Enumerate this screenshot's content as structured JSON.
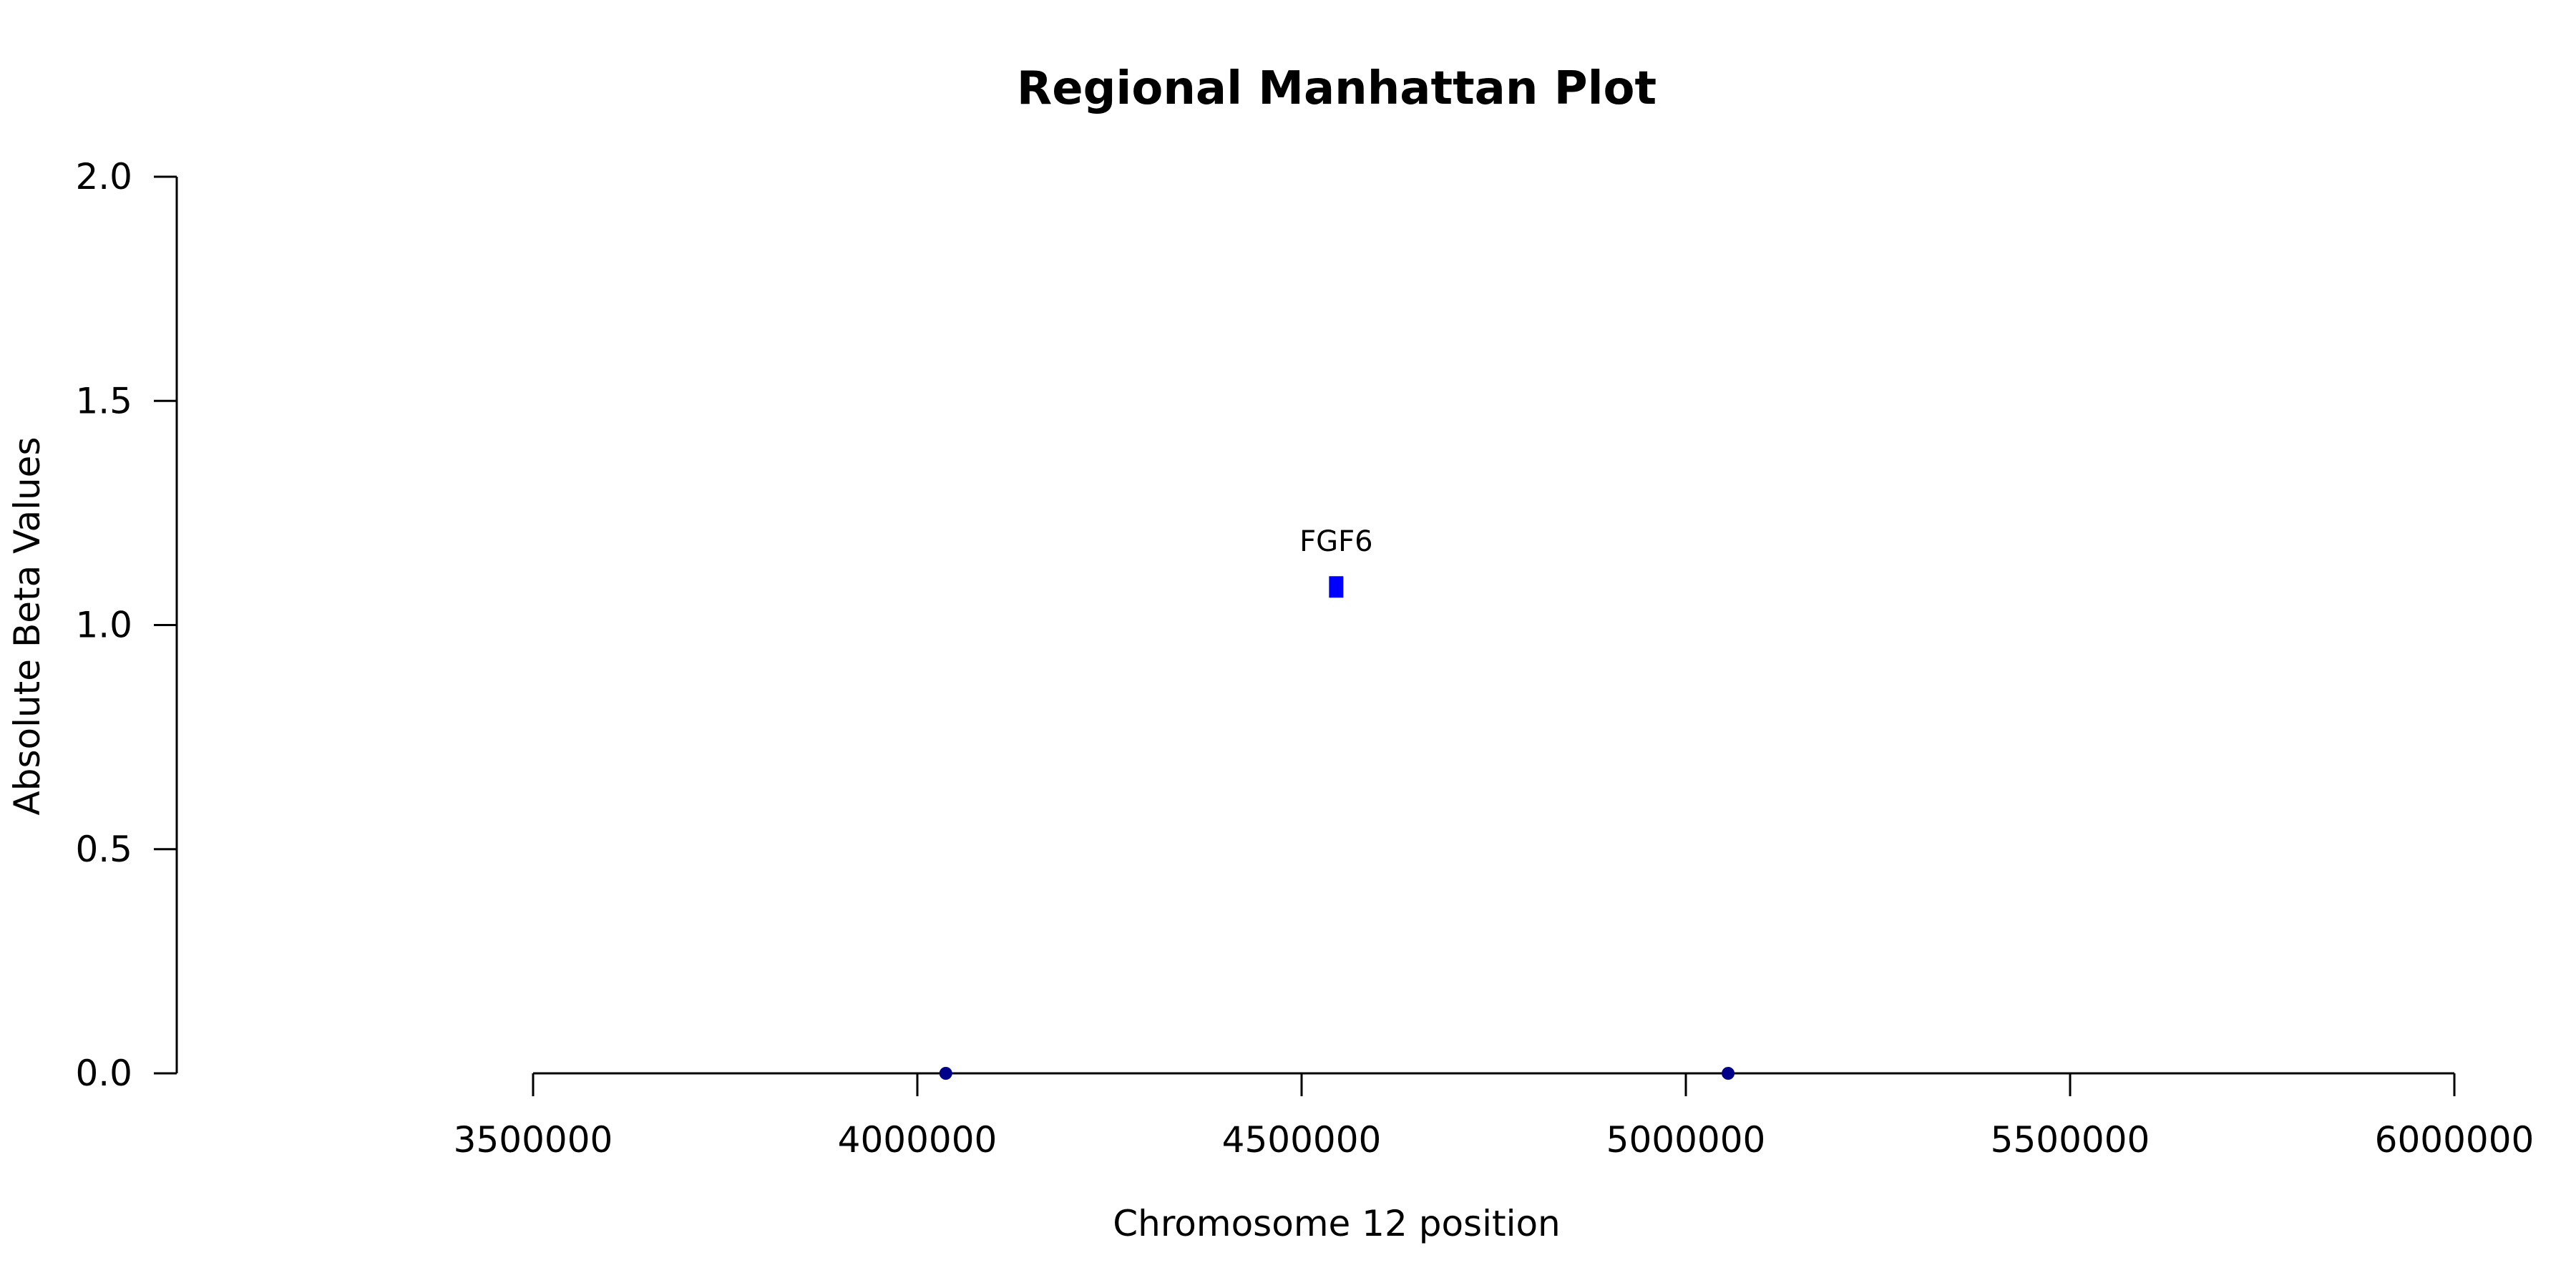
{
  "chart_data": {
    "type": "scatter",
    "title": "Regional Manhattan Plot",
    "xlabel": "Chromosome 12 position",
    "ylabel": "Absolute Beta Values",
    "xlim": [
      3500000,
      6000000
    ],
    "ylim": [
      0,
      2
    ],
    "x_ticks": [
      3500000,
      4000000,
      4500000,
      5000000,
      5500000,
      6000000
    ],
    "y_ticks": [
      "0.0",
      "0.5",
      "1.0",
      "1.5",
      "2.0"
    ],
    "grid": false,
    "legend": "none",
    "points": [
      {
        "x": 4037000,
        "y": 0.0,
        "color": "#00008b",
        "shape": "circle"
      },
      {
        "x": 5055000,
        "y": 0.0,
        "color": "#00008b",
        "shape": "circle"
      },
      {
        "x": 4545000,
        "y": 1.085,
        "color": "#0000ff",
        "shape": "square",
        "label": "FGF6"
      }
    ]
  }
}
